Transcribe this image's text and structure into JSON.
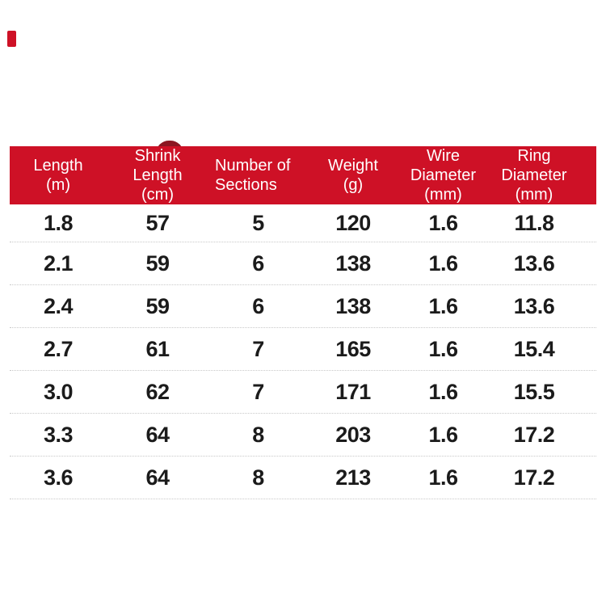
{
  "style": {
    "header_bg": "#ce1126",
    "header_text": "#ffffff",
    "body_text": "#1b1b1b",
    "divider": "#c9c9c9",
    "accent_dark": "#8c1722",
    "corner_mark": "#ce1126"
  },
  "chart_data": {
    "type": "table",
    "columns": [
      {
        "label": "Length (m)",
        "label_lines": [
          "Length",
          "(m)"
        ]
      },
      {
        "label": "Shrink Length (cm)",
        "label_lines": [
          "Shrink",
          "Length",
          "(cm)"
        ]
      },
      {
        "label": "Number of Sections",
        "label_lines": [
          "Number of",
          "Sections"
        ]
      },
      {
        "label": "Weight (g)",
        "label_lines": [
          "Weight",
          "(g)"
        ]
      },
      {
        "label": "Wire Diameter (mm)",
        "label_lines": [
          "Wire",
          "Diameter",
          "(mm)"
        ]
      },
      {
        "label": "Ring Diameter (mm)",
        "label_lines": [
          "Ring",
          "Diameter",
          "(mm)"
        ]
      }
    ],
    "rows": [
      [
        "1.8",
        "57",
        "5",
        "120",
        "1.6",
        "11.8"
      ],
      [
        "2.1",
        "59",
        "6",
        "138",
        "1.6",
        "13.6"
      ],
      [
        "2.4",
        "59",
        "6",
        "138",
        "1.6",
        "13.6"
      ],
      [
        "2.7",
        "61",
        "7",
        "165",
        "1.6",
        "15.4"
      ],
      [
        "3.0",
        "62",
        "7",
        "171",
        "1.6",
        "15.5"
      ],
      [
        "3.3",
        "64",
        "8",
        "203",
        "1.6",
        "17.2"
      ],
      [
        "3.6",
        "64",
        "8",
        "213",
        "1.6",
        "17.2"
      ]
    ]
  }
}
